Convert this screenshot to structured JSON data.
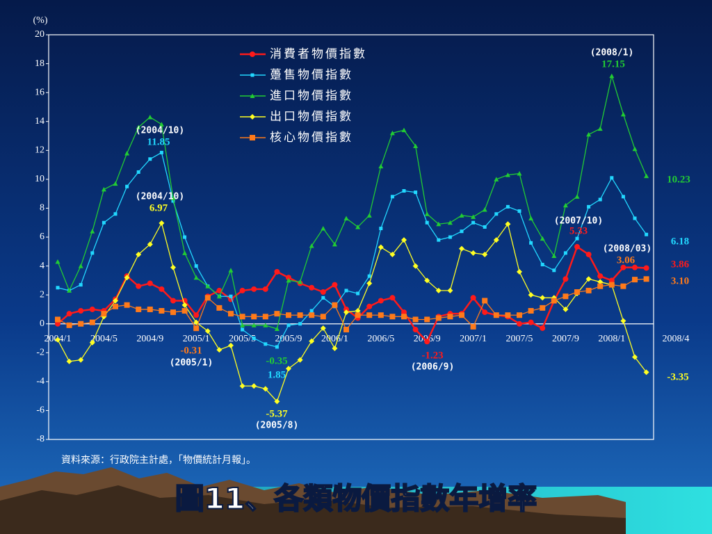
{
  "chart_data": {
    "type": "line",
    "title": "圖11、各類物價指數年增率",
    "source": "資料來源：行政院主計處，「物價統計月報」。",
    "y_label": "(%)",
    "categories": [
      "2004/1",
      null,
      null,
      null,
      "2004/5",
      null,
      null,
      null,
      "2004/9",
      null,
      null,
      null,
      "2005/1",
      null,
      null,
      null,
      "2005/5",
      null,
      null,
      null,
      "2005/9",
      null,
      null,
      null,
      "2006/1",
      null,
      null,
      null,
      "2006/5",
      null,
      null,
      null,
      "2006/9",
      null,
      null,
      null,
      "2007/1",
      null,
      null,
      null,
      "2007/5",
      null,
      null,
      null,
      "2007/9",
      null,
      null,
      null,
      "2008/1",
      null,
      null,
      "2008/4"
    ],
    "ylim": [
      -8,
      20
    ],
    "yticks": [
      -8,
      -6,
      -4,
      -2,
      0,
      2,
      4,
      6,
      8,
      10,
      12,
      14,
      16,
      18,
      20
    ],
    "legend": "top-left",
    "series": [
      {
        "name": "消費者物價指數",
        "color": "#ff1a1a",
        "marker": "circle",
        "values": [
          0.0,
          0.7,
          0.9,
          1.0,
          0.9,
          1.7,
          3.3,
          2.6,
          2.8,
          2.4,
          1.6,
          1.6,
          0.6,
          1.9,
          2.3,
          1.7,
          2.3,
          2.4,
          2.4,
          3.6,
          3.2,
          2.8,
          2.5,
          2.2,
          2.7,
          1.0,
          0.4,
          1.2,
          1.6,
          1.8,
          0.8,
          -0.4,
          -1.23,
          0.5,
          0.7,
          0.7,
          1.8,
          0.8,
          0.6,
          0.5,
          0.0,
          0.1,
          -0.3,
          1.6,
          3.1,
          5.33,
          4.8,
          3.3,
          3.0,
          3.9,
          3.9,
          3.86
        ]
      },
      {
        "name": "躉售物價指數",
        "color": "#22d8ff",
        "marker": "square-small",
        "values": [
          2.5,
          2.3,
          2.7,
          4.9,
          7.0,
          7.6,
          9.5,
          10.5,
          11.4,
          11.85,
          8.5,
          6.0,
          4.0,
          2.6,
          1.9,
          1.9,
          -0.4,
          -1.0,
          -1.4,
          -1.6,
          -0.1,
          0.0,
          0.9,
          1.8,
          1.2,
          2.3,
          2.1,
          3.3,
          6.6,
          8.8,
          9.2,
          9.1,
          7.0,
          5.8,
          6.0,
          6.4,
          7.0,
          6.7,
          7.6,
          8.1,
          7.8,
          5.6,
          4.1,
          3.7,
          4.9,
          5.9,
          8.1,
          8.6,
          10.1,
          8.8,
          7.3,
          6.18
        ]
      },
      {
        "name": "進口物價指數",
        "color": "#22cc33",
        "marker": "triangle",
        "values": [
          4.3,
          2.3,
          4.0,
          6.4,
          9.3,
          9.7,
          11.8,
          13.6,
          14.3,
          13.8,
          8.7,
          4.9,
          3.2,
          2.6,
          1.9,
          3.7,
          -0.1,
          -0.1,
          -0.1,
          -0.35,
          3.0,
          2.9,
          5.4,
          6.6,
          5.5,
          7.3,
          6.7,
          7.5,
          10.9,
          13.2,
          13.4,
          12.3,
          7.6,
          6.9,
          7.0,
          7.5,
          7.4,
          7.9,
          10.0,
          10.3,
          10.4,
          7.3,
          5.9,
          4.7,
          8.2,
          8.8,
          13.1,
          13.5,
          17.15,
          14.5,
          12.1,
          10.23
        ]
      },
      {
        "name": "出口物價指數",
        "color": "#ffff22",
        "marker": "diamond",
        "values": [
          -1.1,
          -2.6,
          -2.5,
          -1.3,
          0.5,
          1.6,
          3.2,
          4.8,
          5.5,
          6.97,
          3.9,
          1.3,
          0.1,
          -0.5,
          -1.8,
          -1.5,
          -4.3,
          -4.3,
          -4.5,
          -5.37,
          -3.1,
          -2.5,
          -1.2,
          -0.3,
          -1.7,
          0.8,
          0.9,
          2.8,
          5.3,
          4.8,
          5.8,
          4.0,
          3.0,
          2.3,
          2.3,
          5.2,
          4.9,
          4.8,
          5.8,
          6.9,
          3.6,
          2.0,
          1.8,
          1.8,
          1.0,
          2.1,
          3.1,
          2.9,
          2.7,
          0.2,
          -2.3,
          -3.35
        ]
      },
      {
        "name": "核心物價指數",
        "color": "#ff7a1a",
        "marker": "square",
        "values": [
          0.3,
          -0.1,
          0.0,
          0.1,
          0.7,
          1.2,
          1.3,
          1.0,
          1.0,
          0.9,
          0.8,
          0.9,
          -0.31,
          1.8,
          1.1,
          0.7,
          0.5,
          0.5,
          0.5,
          0.7,
          0.6,
          0.6,
          0.6,
          0.5,
          1.3,
          -0.4,
          0.6,
          0.6,
          0.6,
          0.5,
          0.5,
          0.3,
          0.3,
          0.4,
          0.5,
          0.6,
          -0.2,
          1.6,
          0.6,
          0.6,
          0.6,
          0.9,
          1.1,
          1.6,
          1.9,
          2.2,
          2.3,
          2.6,
          2.7,
          2.6,
          3.06,
          3.1
        ]
      }
    ],
    "annotations": [
      {
        "text": "(2004/10)",
        "color": "#ffffff"
      },
      {
        "text": "11.85",
        "color": "#22d8ff"
      },
      {
        "text": "(2004/10)",
        "color": "#ffffff"
      },
      {
        "text": "6.97",
        "color": "#ffff22"
      },
      {
        "text": "-0.31",
        "color": "#ff7a1a"
      },
      {
        "text": "(2005/1)",
        "color": "#ffffff"
      },
      {
        "text": "-0.35",
        "color": "#22cc33"
      },
      {
        "text": "1.85",
        "color": "#22d8ff"
      },
      {
        "text": "-5.37",
        "color": "#ffff22"
      },
      {
        "text": "(2005/8)",
        "color": "#ffffff"
      },
      {
        "text": "-1.23",
        "color": "#ff1a1a"
      },
      {
        "text": "(2006/9)",
        "color": "#ffffff"
      },
      {
        "text": "(2008/1)",
        "color": "#ffffff"
      },
      {
        "text": "17.15",
        "color": "#22cc33"
      },
      {
        "text": "(2007/10)",
        "color": "#ffffff"
      },
      {
        "text": "5.33",
        "color": "#ff1a1a"
      },
      {
        "text": "(2008/03)",
        "color": "#ffffff"
      },
      {
        "text": "3.06",
        "color": "#ff7a1a"
      },
      {
        "text": "10.23",
        "color": "#22cc33"
      },
      {
        "text": "6.18",
        "color": "#22d8ff"
      },
      {
        "text": "3.86",
        "color": "#ff1a1a"
      },
      {
        "text": "3.10",
        "color": "#ff7a1a"
      },
      {
        "text": "-3.35",
        "color": "#ffff22"
      }
    ]
  }
}
